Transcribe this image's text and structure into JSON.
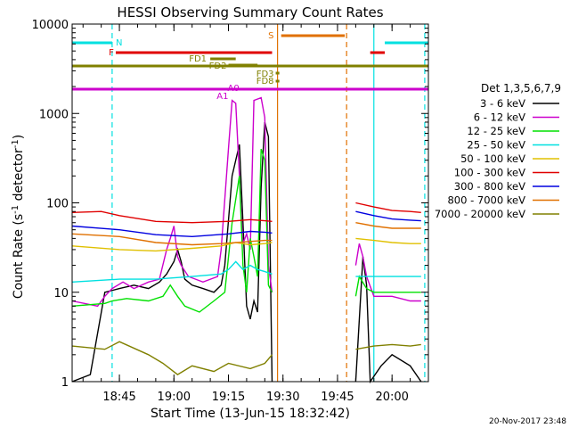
{
  "chart_data": {
    "type": "line",
    "title": "HESSI Observing Summary Count Rates",
    "xlabel": "Start Time (13-Jun-15 18:32:42)",
    "ylabel": "Count Rate (s⁻¹ detector⁻¹)",
    "ylabel_main": "Count Rate (s",
    "ylabel_sup1": "-1",
    "ylabel_mid": " detector",
    "ylabel_sup2": "-1",
    "ylabel_end": ")",
    "y_scale": "log",
    "ylim": [
      1,
      10000
    ],
    "y_ticks": [
      {
        "v": 1,
        "label": "1"
      },
      {
        "v": 10,
        "label": "10"
      },
      {
        "v": 100,
        "label": "100"
      },
      {
        "v": 1000,
        "label": "1000"
      },
      {
        "v": 10000,
        "label": "10000"
      }
    ],
    "xlim_min": [
      -13,
      85
    ],
    "x_ticks": [
      {
        "v": 0,
        "label": "18:45"
      },
      {
        "v": 15,
        "label": "19:00"
      },
      {
        "v": 30,
        "label": "19:15"
      },
      {
        "v": 45,
        "label": "19:30"
      },
      {
        "v": 60,
        "label": "19:45"
      },
      {
        "v": 75,
        "label": "20:00"
      }
    ],
    "legend_title": "Det 1,3,5,6,7,9",
    "legend_placement": "right",
    "footer_date": "20-Nov-2017 23:48",
    "series": [
      {
        "name": "3 - 6 keV",
        "color": "#000000",
        "points": [
          [
            -13,
            1
          ],
          [
            -8,
            1.2
          ],
          [
            -4,
            10
          ],
          [
            0,
            11
          ],
          [
            4,
            12
          ],
          [
            8,
            11
          ],
          [
            11,
            13
          ],
          [
            13,
            16
          ],
          [
            15,
            22
          ],
          [
            16,
            30
          ],
          [
            17,
            22
          ],
          [
            18,
            14
          ],
          [
            20,
            12
          ],
          [
            23,
            11
          ],
          [
            26,
            10
          ],
          [
            28,
            12
          ],
          [
            29,
            20
          ],
          [
            31,
            200
          ],
          [
            33,
            450
          ],
          [
            34,
            60
          ],
          [
            35,
            7
          ],
          [
            36,
            5
          ],
          [
            37,
            8
          ],
          [
            38,
            6
          ],
          [
            39,
            150
          ],
          [
            40,
            800
          ],
          [
            41,
            550
          ],
          [
            42,
            1
          ]
        ],
        "points2": [
          [
            65,
            1
          ],
          [
            67,
            25
          ],
          [
            68,
            12
          ],
          [
            69,
            1
          ],
          [
            72,
            1.5
          ],
          [
            75,
            2
          ],
          [
            80,
            1.5
          ],
          [
            83,
            1
          ]
        ]
      },
      {
        "name": "6 - 12 keV",
        "color": "#cc00cc",
        "points": [
          [
            -13,
            8
          ],
          [
            -6,
            7
          ],
          [
            -4,
            9
          ],
          [
            -2,
            11
          ],
          [
            1,
            13
          ],
          [
            4,
            11
          ],
          [
            8,
            13
          ],
          [
            11,
            14
          ],
          [
            13,
            30
          ],
          [
            14,
            40
          ],
          [
            15,
            55
          ],
          [
            16,
            25
          ],
          [
            17,
            20
          ],
          [
            19,
            15
          ],
          [
            23,
            13
          ],
          [
            27,
            15
          ],
          [
            28,
            30
          ],
          [
            30,
            400
          ],
          [
            31,
            1400
          ],
          [
            32,
            1300
          ],
          [
            33,
            200
          ],
          [
            34,
            35
          ],
          [
            35,
            45
          ],
          [
            36,
            30
          ],
          [
            37,
            1400
          ],
          [
            39,
            1500
          ],
          [
            40,
            900
          ],
          [
            41,
            20
          ],
          [
            42,
            10
          ]
        ],
        "points2": [
          [
            65,
            20
          ],
          [
            66,
            35
          ],
          [
            67,
            25
          ],
          [
            68,
            15
          ],
          [
            70,
            9
          ],
          [
            75,
            9
          ],
          [
            80,
            8
          ],
          [
            83,
            8
          ]
        ]
      },
      {
        "name": "12 - 25 keV",
        "color": "#00e000",
        "points": [
          [
            -13,
            7
          ],
          [
            -4,
            7.5
          ],
          [
            -2,
            8
          ],
          [
            2,
            8.5
          ],
          [
            8,
            8
          ],
          [
            12,
            9
          ],
          [
            14,
            12
          ],
          [
            16,
            9
          ],
          [
            18,
            7
          ],
          [
            22,
            6
          ],
          [
            26,
            8
          ],
          [
            29,
            10
          ],
          [
            31,
            60
          ],
          [
            33,
            200
          ],
          [
            34,
            20
          ],
          [
            35,
            10
          ],
          [
            36,
            40
          ],
          [
            37,
            25
          ],
          [
            38,
            15
          ],
          [
            39,
            400
          ],
          [
            40,
            300
          ],
          [
            41,
            12
          ],
          [
            42,
            10
          ]
        ],
        "points2": [
          [
            65,
            9
          ],
          [
            66,
            15
          ],
          [
            68,
            11
          ],
          [
            70,
            10
          ],
          [
            75,
            10
          ],
          [
            80,
            10
          ],
          [
            83,
            10
          ]
        ]
      },
      {
        "name": "25 - 50 keV",
        "color": "#00e0e0",
        "points": [
          [
            -13,
            13
          ],
          [
            0,
            14
          ],
          [
            10,
            14
          ],
          [
            20,
            15
          ],
          [
            28,
            16
          ],
          [
            30,
            18
          ],
          [
            32,
            22
          ],
          [
            34,
            18
          ],
          [
            36,
            20
          ],
          [
            38,
            18
          ],
          [
            40,
            17
          ],
          [
            42,
            16
          ]
        ],
        "points2": [
          [
            65,
            15
          ],
          [
            70,
            15
          ],
          [
            75,
            15
          ],
          [
            80,
            15
          ],
          [
            83,
            15
          ]
        ]
      },
      {
        "name": "50 - 100 keV",
        "color": "#e0c000",
        "points": [
          [
            -13,
            33
          ],
          [
            0,
            30
          ],
          [
            10,
            29
          ],
          [
            20,
            31
          ],
          [
            28,
            33
          ],
          [
            32,
            36
          ],
          [
            36,
            34
          ],
          [
            40,
            35
          ],
          [
            42,
            36
          ]
        ],
        "points2": [
          [
            65,
            40
          ],
          [
            70,
            38
          ],
          [
            75,
            36
          ],
          [
            80,
            35
          ],
          [
            83,
            35
          ]
        ]
      },
      {
        "name": "100 - 300 keV",
        "color": "#e00000",
        "points": [
          [
            -13,
            78
          ],
          [
            -5,
            80
          ],
          [
            0,
            72
          ],
          [
            10,
            62
          ],
          [
            20,
            60
          ],
          [
            30,
            62
          ],
          [
            36,
            65
          ],
          [
            40,
            63
          ],
          [
            42,
            62
          ]
        ],
        "points2": [
          [
            65,
            100
          ],
          [
            70,
            90
          ],
          [
            75,
            82
          ],
          [
            80,
            80
          ],
          [
            83,
            78
          ]
        ]
      },
      {
        "name": "300 - 800 keV",
        "color": "#0000e0",
        "points": [
          [
            -13,
            55
          ],
          [
            0,
            50
          ],
          [
            10,
            44
          ],
          [
            20,
            42
          ],
          [
            30,
            45
          ],
          [
            36,
            48
          ],
          [
            40,
            47
          ],
          [
            42,
            46
          ]
        ],
        "points2": [
          [
            65,
            80
          ],
          [
            70,
            72
          ],
          [
            75,
            66
          ],
          [
            80,
            64
          ],
          [
            83,
            63
          ]
        ]
      },
      {
        "name": "800 - 7000 keV",
        "color": "#e07000",
        "points": [
          [
            -13,
            45
          ],
          [
            0,
            42
          ],
          [
            10,
            36
          ],
          [
            20,
            34
          ],
          [
            28,
            35
          ],
          [
            36,
            37
          ],
          [
            40,
            38
          ],
          [
            42,
            38
          ]
        ],
        "points2": [
          [
            65,
            60
          ],
          [
            70,
            55
          ],
          [
            75,
            52
          ],
          [
            80,
            52
          ],
          [
            83,
            52
          ]
        ]
      },
      {
        "name": "7000 - 20000 keV",
        "color": "#808000",
        "points": [
          [
            -13,
            2.5
          ],
          [
            -4,
            2.3
          ],
          [
            0,
            2.8
          ],
          [
            8,
            2
          ],
          [
            12,
            1.6
          ],
          [
            16,
            1.2
          ],
          [
            20,
            1.5
          ],
          [
            26,
            1.3
          ],
          [
            30,
            1.6
          ],
          [
            36,
            1.4
          ],
          [
            40,
            1.6
          ],
          [
            42,
            2
          ]
        ],
        "points2": [
          [
            65,
            2.3
          ],
          [
            70,
            2.5
          ],
          [
            75,
            2.6
          ],
          [
            80,
            2.5
          ],
          [
            83,
            2.6
          ]
        ]
      }
    ],
    "flag_bars": [
      {
        "label": "N",
        "color": "#00e0e0",
        "segments": [
          [
            -13,
            -2
          ],
          [
            73,
            85
          ]
        ]
      },
      {
        "label": "F",
        "color": "#e00000",
        "segments": [
          [
            -1,
            42
          ],
          [
            69,
            73
          ]
        ]
      },
      {
        "label": "S",
        "color": "#e07000",
        "segments": [
          [
            44.5,
            62
          ]
        ]
      },
      {
        "label": "FD1",
        "color": "#808000",
        "segments": [
          [
            25,
            32
          ]
        ]
      },
      {
        "label": "FD2",
        "color": "#808000",
        "segments": [
          [
            30,
            38
          ]
        ]
      },
      {
        "label": "FD3",
        "color": "#808000",
        "segments": [
          [
            43,
            44
          ]
        ]
      },
      {
        "label": "FD8",
        "color": "#808000",
        "segments": [
          [
            43,
            44
          ]
        ]
      },
      {
        "label": "A1",
        "color": "#cc00cc",
        "segments": [
          [
            -13,
            85
          ]
        ]
      },
      {
        "label": "A0",
        "color": "#cc00cc",
        "segments": [
          [
            -13,
            85
          ]
        ]
      }
    ],
    "vertical_markers": [
      {
        "x": -2,
        "color": "#00e0e0",
        "style": "dashed"
      },
      {
        "x": 43.5,
        "color": "#e07000",
        "style": "solid"
      },
      {
        "x": 62.5,
        "color": "#e07000",
        "style": "dashed"
      },
      {
        "x": 70,
        "color": "#00e0e0",
        "style": "solid"
      },
      {
        "x": 84,
        "color": "#00e0e0",
        "style": "dashed"
      }
    ]
  }
}
